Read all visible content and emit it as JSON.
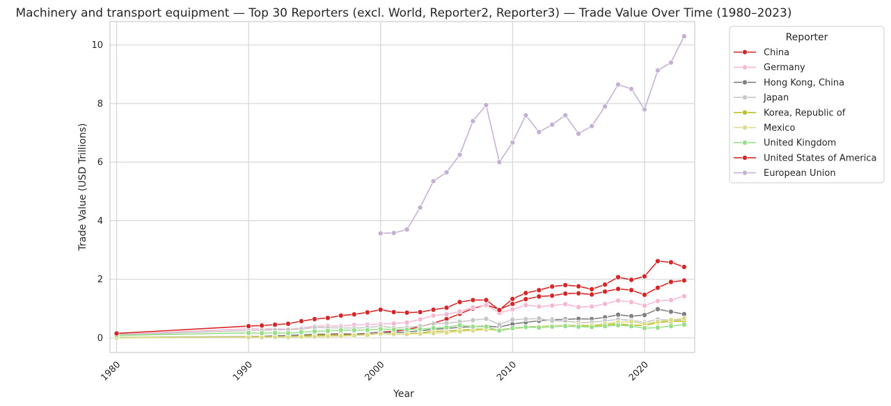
{
  "chart_data": {
    "type": "line",
    "title": "Machinery and transport equipment — Top 30 Reporters (excl. World, Reporter2, Reporter3) — Trade Value Over Time (1980–2023)",
    "xlabel": "Year",
    "ylabel": "Trade Value (USD Trillions)",
    "xlim": [
      1979.5,
      2023.8
    ],
    "ylim": [
      -0.5,
      10.8
    ],
    "x_ticks": [
      1980,
      1990,
      2000,
      2010,
      2020
    ],
    "y_ticks": [
      0,
      2,
      4,
      6,
      8,
      10
    ],
    "grid": true,
    "legend": {
      "title": "Reporter",
      "placement": "outside-right"
    },
    "series": [
      {
        "name": "China",
        "color": "#d62728",
        "x": [
          1980,
          2023
        ],
        "y": [
          0.0,
          0.0
        ],
        "points": [
          [
            1990,
            0.02
          ],
          [
            1991,
            0.03
          ],
          [
            1992,
            0.04
          ],
          [
            1993,
            0.05
          ],
          [
            1994,
            0.07
          ],
          [
            1995,
            0.09
          ],
          [
            1996,
            0.1
          ],
          [
            1997,
            0.11
          ],
          [
            1998,
            0.12
          ],
          [
            1999,
            0.15
          ],
          [
            2000,
            0.2
          ],
          [
            2001,
            0.22
          ],
          [
            2002,
            0.28
          ],
          [
            2003,
            0.38
          ],
          [
            2004,
            0.5
          ],
          [
            2005,
            0.64
          ],
          [
            2006,
            0.82
          ],
          [
            2007,
            1.0
          ],
          [
            2008,
            1.13
          ],
          [
            2009,
            0.97
          ],
          [
            2010,
            1.16
          ],
          [
            2011,
            1.32
          ],
          [
            2012,
            1.41
          ],
          [
            2013,
            1.44
          ],
          [
            2014,
            1.51
          ],
          [
            2015,
            1.52
          ],
          [
            2016,
            1.48
          ],
          [
            2017,
            1.58
          ],
          [
            2018,
            1.67
          ],
          [
            2019,
            1.63
          ],
          [
            2020,
            1.47
          ],
          [
            2021,
            1.71
          ],
          [
            2022,
            1.91
          ],
          [
            2023,
            1.96
          ]
        ]
      },
      {
        "name": "Germany",
        "color": "#f7b6d2",
        "points": [
          [
            1980,
            0.12
          ],
          [
            1990,
            0.31
          ],
          [
            1991,
            0.3
          ],
          [
            1992,
            0.31
          ],
          [
            1993,
            0.29
          ],
          [
            1994,
            0.33
          ],
          [
            1995,
            0.4
          ],
          [
            1996,
            0.41
          ],
          [
            1997,
            0.4
          ],
          [
            1998,
            0.44
          ],
          [
            1999,
            0.45
          ],
          [
            2000,
            0.47
          ],
          [
            2001,
            0.49
          ],
          [
            2002,
            0.52
          ],
          [
            2003,
            0.63
          ],
          [
            2004,
            0.76
          ],
          [
            2005,
            0.8
          ],
          [
            2006,
            0.9
          ],
          [
            2007,
            1.04
          ],
          [
            2008,
            1.12
          ],
          [
            2009,
            0.85
          ],
          [
            2010,
            0.97
          ],
          [
            2011,
            1.12
          ],
          [
            2012,
            1.07
          ],
          [
            2013,
            1.1
          ],
          [
            2014,
            1.15
          ],
          [
            2015,
            1.05
          ],
          [
            2016,
            1.07
          ],
          [
            2017,
            1.16
          ],
          [
            2018,
            1.27
          ],
          [
            2019,
            1.22
          ],
          [
            2020,
            1.1
          ],
          [
            2021,
            1.26
          ],
          [
            2022,
            1.29
          ],
          [
            2023,
            1.42
          ]
        ]
      },
      {
        "name": "Hong Kong, China",
        "color": "#7f7f7f",
        "points": [
          [
            1980,
            0.01
          ],
          [
            1990,
            0.04
          ],
          [
            1991,
            0.05
          ],
          [
            1992,
            0.07
          ],
          [
            1993,
            0.08
          ],
          [
            1994,
            0.1
          ],
          [
            1995,
            0.12
          ],
          [
            1996,
            0.13
          ],
          [
            1997,
            0.14
          ],
          [
            1998,
            0.13
          ],
          [
            1999,
            0.15
          ],
          [
            2000,
            0.19
          ],
          [
            2001,
            0.18
          ],
          [
            2002,
            0.2
          ],
          [
            2003,
            0.24
          ],
          [
            2004,
            0.29
          ],
          [
            2005,
            0.32
          ],
          [
            2006,
            0.36
          ],
          [
            2007,
            0.38
          ],
          [
            2008,
            0.4
          ],
          [
            2009,
            0.37
          ],
          [
            2010,
            0.47
          ],
          [
            2011,
            0.53
          ],
          [
            2012,
            0.58
          ],
          [
            2013,
            0.62
          ],
          [
            2014,
            0.63
          ],
          [
            2015,
            0.65
          ],
          [
            2016,
            0.64
          ],
          [
            2017,
            0.7
          ],
          [
            2018,
            0.79
          ],
          [
            2019,
            0.74
          ],
          [
            2020,
            0.78
          ],
          [
            2021,
            0.98
          ],
          [
            2022,
            0.89
          ],
          [
            2023,
            0.81
          ]
        ]
      },
      {
        "name": "Japan",
        "color": "#c7c7c7",
        "points": [
          [
            1980,
            0.1
          ],
          [
            1990,
            0.25
          ],
          [
            1991,
            0.26
          ],
          [
            1992,
            0.27
          ],
          [
            1993,
            0.28
          ],
          [
            1994,
            0.3
          ],
          [
            1995,
            0.36
          ],
          [
            1996,
            0.34
          ],
          [
            1997,
            0.34
          ],
          [
            1998,
            0.33
          ],
          [
            1999,
            0.35
          ],
          [
            2000,
            0.4
          ],
          [
            2001,
            0.34
          ],
          [
            2002,
            0.35
          ],
          [
            2003,
            0.4
          ],
          [
            2004,
            0.48
          ],
          [
            2005,
            0.5
          ],
          [
            2006,
            0.55
          ],
          [
            2007,
            0.6
          ],
          [
            2008,
            0.65
          ],
          [
            2009,
            0.46
          ],
          [
            2010,
            0.62
          ],
          [
            2011,
            0.64
          ],
          [
            2012,
            0.66
          ],
          [
            2013,
            0.58
          ],
          [
            2014,
            0.57
          ],
          [
            2015,
            0.52
          ],
          [
            2016,
            0.53
          ],
          [
            2017,
            0.58
          ],
          [
            2018,
            0.63
          ],
          [
            2019,
            0.6
          ],
          [
            2020,
            0.53
          ],
          [
            2021,
            0.63
          ],
          [
            2022,
            0.6
          ],
          [
            2023,
            0.62
          ]
        ]
      },
      {
        "name": "Korea, Republic of",
        "color": "#bcbd22",
        "points": [
          [
            1980,
            0.01
          ],
          [
            1990,
            0.03
          ],
          [
            1991,
            0.04
          ],
          [
            1992,
            0.04
          ],
          [
            1993,
            0.05
          ],
          [
            1994,
            0.06
          ],
          [
            1995,
            0.08
          ],
          [
            1996,
            0.09
          ],
          [
            1997,
            0.09
          ],
          [
            1998,
            0.09
          ],
          [
            1999,
            0.1
          ],
          [
            2000,
            0.14
          ],
          [
            2001,
            0.12
          ],
          [
            2002,
            0.14
          ],
          [
            2003,
            0.17
          ],
          [
            2004,
            0.22
          ],
          [
            2005,
            0.23
          ],
          [
            2006,
            0.26
          ],
          [
            2007,
            0.29
          ],
          [
            2008,
            0.3
          ],
          [
            2009,
            0.27
          ],
          [
            2010,
            0.33
          ],
          [
            2011,
            0.37
          ],
          [
            2012,
            0.39
          ],
          [
            2013,
            0.41
          ],
          [
            2014,
            0.43
          ],
          [
            2015,
            0.42
          ],
          [
            2016,
            0.4
          ],
          [
            2017,
            0.45
          ],
          [
            2018,
            0.47
          ],
          [
            2019,
            0.44
          ],
          [
            2020,
            0.42
          ],
          [
            2021,
            0.52
          ],
          [
            2022,
            0.56
          ],
          [
            2023,
            0.57
          ]
        ]
      },
      {
        "name": "Mexico",
        "color": "#dbdb8d",
        "points": [
          [
            1980,
            0.0
          ],
          [
            1990,
            0.02
          ],
          [
            1991,
            0.02
          ],
          [
            1992,
            0.03
          ],
          [
            1993,
            0.03
          ],
          [
            1994,
            0.04
          ],
          [
            1995,
            0.04
          ],
          [
            1996,
            0.05
          ],
          [
            1997,
            0.06
          ],
          [
            1998,
            0.08
          ],
          [
            1999,
            0.1
          ],
          [
            2000,
            0.14
          ],
          [
            2001,
            0.13
          ],
          [
            2002,
            0.13
          ],
          [
            2003,
            0.14
          ],
          [
            2004,
            0.16
          ],
          [
            2005,
            0.18
          ],
          [
            2006,
            0.22
          ],
          [
            2007,
            0.25
          ],
          [
            2008,
            0.28
          ],
          [
            2009,
            0.25
          ],
          [
            2010,
            0.31
          ],
          [
            2011,
            0.35
          ],
          [
            2012,
            0.38
          ],
          [
            2013,
            0.4
          ],
          [
            2014,
            0.43
          ],
          [
            2015,
            0.44
          ],
          [
            2016,
            0.43
          ],
          [
            2017,
            0.48
          ],
          [
            2018,
            0.53
          ],
          [
            2019,
            0.55
          ],
          [
            2020,
            0.48
          ],
          [
            2021,
            0.55
          ],
          [
            2022,
            0.61
          ],
          [
            2023,
            0.66
          ]
        ]
      },
      {
        "name": "United Kingdom",
        "color": "#98df8a",
        "points": [
          [
            1980,
            0.08
          ],
          [
            1990,
            0.17
          ],
          [
            1991,
            0.16
          ],
          [
            1992,
            0.17
          ],
          [
            1993,
            0.16
          ],
          [
            1994,
            0.19
          ],
          [
            1995,
            0.22
          ],
          [
            1996,
            0.24
          ],
          [
            1997,
            0.26
          ],
          [
            1998,
            0.26
          ],
          [
            1999,
            0.27
          ],
          [
            2000,
            0.3
          ],
          [
            2001,
            0.28
          ],
          [
            2002,
            0.28
          ],
          [
            2003,
            0.3
          ],
          [
            2004,
            0.33
          ],
          [
            2005,
            0.36
          ],
          [
            2006,
            0.43
          ],
          [
            2007,
            0.38
          ],
          [
            2008,
            0.38
          ],
          [
            2009,
            0.25
          ],
          [
            2010,
            0.33
          ],
          [
            2011,
            0.37
          ],
          [
            2012,
            0.35
          ],
          [
            2013,
            0.38
          ],
          [
            2014,
            0.4
          ],
          [
            2015,
            0.38
          ],
          [
            2016,
            0.37
          ],
          [
            2017,
            0.4
          ],
          [
            2018,
            0.43
          ],
          [
            2019,
            0.4
          ],
          [
            2020,
            0.33
          ],
          [
            2021,
            0.35
          ],
          [
            2022,
            0.4
          ],
          [
            2023,
            0.45
          ]
        ]
      },
      {
        "name": "United States of America",
        "color": "#d62728",
        "points": [
          [
            1980,
            0.15
          ],
          [
            1990,
            0.4
          ],
          [
            1991,
            0.42
          ],
          [
            1992,
            0.45
          ],
          [
            1993,
            0.48
          ],
          [
            1994,
            0.57
          ],
          [
            1995,
            0.64
          ],
          [
            1996,
            0.68
          ],
          [
            1997,
            0.76
          ],
          [
            1998,
            0.8
          ],
          [
            1999,
            0.87
          ],
          [
            2000,
            0.96
          ],
          [
            2001,
            0.88
          ],
          [
            2002,
            0.86
          ],
          [
            2003,
            0.88
          ],
          [
            2004,
            0.96
          ],
          [
            2005,
            1.03
          ],
          [
            2006,
            1.22
          ],
          [
            2007,
            1.29
          ],
          [
            2008,
            1.29
          ],
          [
            2009,
            0.95
          ],
          [
            2010,
            1.33
          ],
          [
            2011,
            1.53
          ],
          [
            2012,
            1.63
          ],
          [
            2013,
            1.75
          ],
          [
            2014,
            1.8
          ],
          [
            2015,
            1.76
          ],
          [
            2016,
            1.66
          ],
          [
            2017,
            1.82
          ],
          [
            2018,
            2.07
          ],
          [
            2019,
            1.98
          ],
          [
            2020,
            2.1
          ],
          [
            2021,
            2.62
          ],
          [
            2022,
            2.58
          ],
          [
            2023,
            2.42
          ]
        ]
      },
      {
        "name": "European Union",
        "color": "#c5b0d5",
        "points": [
          [
            2000,
            3.57
          ],
          [
            2001,
            3.58
          ],
          [
            2002,
            3.7
          ],
          [
            2003,
            4.45
          ],
          [
            2004,
            5.35
          ],
          [
            2005,
            5.65
          ],
          [
            2006,
            6.25
          ],
          [
            2007,
            7.4
          ],
          [
            2008,
            7.95
          ],
          [
            2009,
            6.0
          ],
          [
            2010,
            6.67
          ],
          [
            2011,
            7.6
          ],
          [
            2012,
            7.03
          ],
          [
            2013,
            7.28
          ],
          [
            2014,
            7.6
          ],
          [
            2015,
            6.97
          ],
          [
            2016,
            7.23
          ],
          [
            2017,
            7.9
          ],
          [
            2018,
            8.65
          ],
          [
            2019,
            8.5
          ],
          [
            2020,
            7.8
          ],
          [
            2021,
            9.13
          ],
          [
            2022,
            9.4
          ],
          [
            2023,
            10.3
          ]
        ]
      }
    ]
  }
}
